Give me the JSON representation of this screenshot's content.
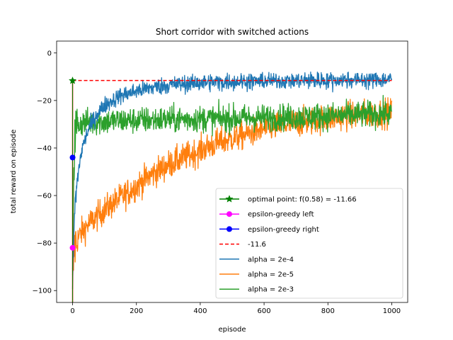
{
  "chart_data": {
    "type": "line",
    "title": "Short corridor with switched actions",
    "xlabel": "episode",
    "ylabel": "total reward on episode",
    "xlim": [
      -50,
      1050
    ],
    "ylim": [
      -105,
      5
    ],
    "xticks": [
      0,
      200,
      400,
      600,
      800,
      1000
    ],
    "yticks": [
      0,
      -20,
      -40,
      -60,
      -80,
      -100
    ],
    "grid": false,
    "legend_position": "lower-right",
    "colors": {
      "optimal": "#008000",
      "eps_left": "#ff00ff",
      "eps_right": "#0000ff",
      "ref": "#ff0000",
      "alpha_2e4": "#1f77b4",
      "alpha_2e5": "#ff7f0e",
      "alpha_2e3": "#2ca02c"
    },
    "legend": [
      {
        "label": "optimal point: f(0.58) = -11.66",
        "key": "optimal",
        "style": "line-star"
      },
      {
        "label": "epsilon-greedy left",
        "key": "eps_left",
        "style": "line-dot"
      },
      {
        "label": "epsilon-greedy right",
        "key": "eps_right",
        "style": "line-dot"
      },
      {
        "label": "-11.6",
        "key": "ref",
        "style": "dashed"
      },
      {
        "label": "alpha = 2e-4",
        "key": "alpha_2e4",
        "style": "line"
      },
      {
        "label": "alpha = 2e-5",
        "key": "alpha_2e5",
        "style": "line"
      },
      {
        "label": "alpha = 2e-3",
        "key": "alpha_2e3",
        "style": "line"
      }
    ],
    "markers": [
      {
        "name": "optimal point",
        "x": 0,
        "y": -11.66
      },
      {
        "name": "epsilon-greedy left",
        "x": 0,
        "y": -82
      },
      {
        "name": "epsilon-greedy right",
        "x": 0,
        "y": -44
      }
    ],
    "reference_line": {
      "y": -11.6,
      "x_range": [
        0,
        1000
      ]
    },
    "series": [
      {
        "name": "alpha = 2e-4",
        "x": [
          0,
          5,
          10,
          20,
          30,
          50,
          75,
          100,
          150,
          200,
          250,
          300,
          350,
          400,
          450,
          500,
          600,
          700,
          800,
          900,
          1000
        ],
        "y": [
          -98,
          -72,
          -60,
          -48,
          -40,
          -32,
          -26,
          -22,
          -18,
          -16,
          -14.5,
          -13.5,
          -13,
          -12.5,
          -12.3,
          -12,
          -11.8,
          -11.6,
          -11.5,
          -11.3,
          -11.2
        ],
        "noise": 1.8
      },
      {
        "name": "alpha = 2e-5",
        "x": [
          0,
          5,
          10,
          25,
          50,
          75,
          100,
          150,
          200,
          250,
          300,
          350,
          400,
          450,
          500,
          550,
          600,
          650,
          700,
          750,
          800,
          850,
          900,
          950,
          1000
        ],
        "y": [
          -100,
          -82,
          -80,
          -76,
          -72,
          -69,
          -66,
          -61,
          -56,
          -51,
          -47,
          -44,
          -41,
          -38,
          -36,
          -34,
          -32,
          -30.5,
          -29.5,
          -28.5,
          -27.5,
          -26.5,
          -26,
          -25.5,
          -25
        ],
        "noise": 3
      },
      {
        "name": "alpha = 2e-3",
        "x": [
          0,
          3,
          6,
          10,
          20,
          40,
          80,
          150,
          300,
          500,
          700,
          900,
          1000
        ],
        "y": [
          -95,
          -55,
          -38,
          -32,
          -30,
          -29,
          -29,
          -28.5,
          -28,
          -27.5,
          -27,
          -26,
          -25.5
        ],
        "noise": 2.8
      }
    ]
  }
}
